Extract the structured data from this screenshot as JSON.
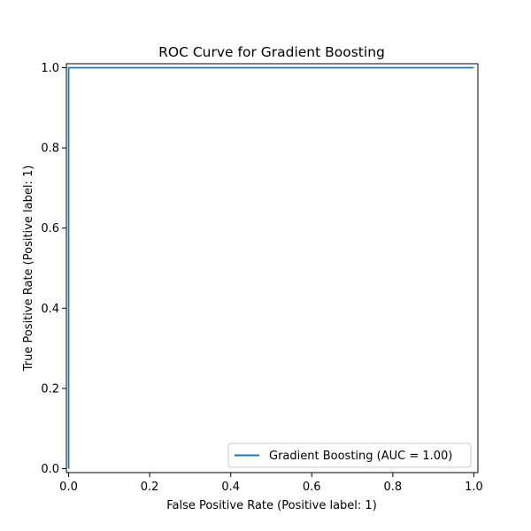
{
  "chart_data": {
    "type": "line",
    "title": "ROC Curve for Gradient Boosting",
    "xlabel": "False Positive Rate (Positive label: 1)",
    "ylabel": "True Positive Rate (Positive label: 1)",
    "xlim": [
      -0.0055,
      1.01
    ],
    "ylim": [
      -0.01,
      1.01
    ],
    "xticks": [
      0.0,
      0.2,
      0.4,
      0.6,
      0.8,
      1.0
    ],
    "xtick_labels": [
      "0.0",
      "0.2",
      "0.4",
      "0.6",
      "0.8",
      "1.0"
    ],
    "yticks": [
      0.0,
      0.2,
      0.4,
      0.6,
      0.8,
      1.0
    ],
    "ytick_labels": [
      "0.0",
      "0.2",
      "0.4",
      "0.6",
      "0.8",
      "1.0"
    ],
    "grid": false,
    "legend_position": "lower-right",
    "series": [
      {
        "name": "Gradient Boosting (AUC = 1.00)",
        "color": "#1f77b4",
        "x": [
          0.0,
          0.0,
          0.0,
          1.0
        ],
        "y": [
          0.0,
          0.0,
          1.0,
          1.0
        ]
      }
    ]
  }
}
